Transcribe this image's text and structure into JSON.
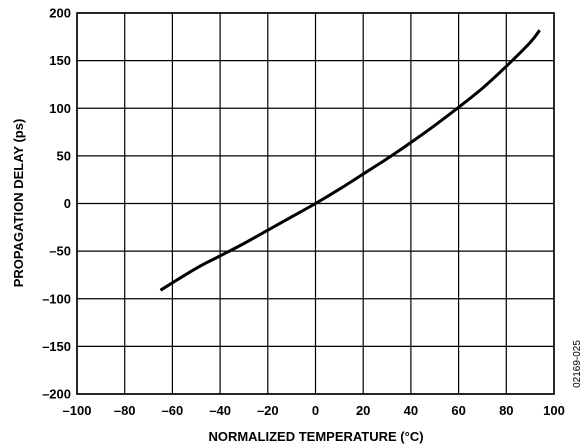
{
  "chart_data": {
    "type": "line",
    "xlabel": "NORMALIZED TEMPERATURE (°C)",
    "ylabel": "PROPAGATION DELAY (ps)",
    "xlim": [
      -100,
      100
    ],
    "ylim": [
      -200,
      200
    ],
    "x_ticks": [
      -100,
      -80,
      -60,
      -40,
      -20,
      0,
      20,
      40,
      60,
      80,
      100
    ],
    "y_ticks": [
      200,
      150,
      100,
      50,
      0,
      -50,
      -100,
      -150,
      -200
    ],
    "x_tick_labels": [
      "–100",
      "–80",
      "–60",
      "–40",
      "–20",
      "0",
      "20",
      "40",
      "60",
      "80",
      "100"
    ],
    "y_tick_labels": [
      "200",
      "150",
      "100",
      "50",
      "0",
      "–50",
      "–100",
      "–150",
      "–200"
    ],
    "grid": true,
    "figure_id": "02169-025",
    "series": [
      {
        "x": [
          -65,
          -50,
          -40,
          -30,
          -20,
          -10,
          0,
          10,
          20,
          30,
          40,
          50,
          60,
          70,
          80,
          90,
          94
        ],
        "y": [
          -91,
          -68,
          -55,
          -42,
          -28,
          -14,
          0,
          15,
          31,
          47,
          64,
          82,
          101,
          121,
          144,
          169,
          182
        ]
      }
    ]
  }
}
